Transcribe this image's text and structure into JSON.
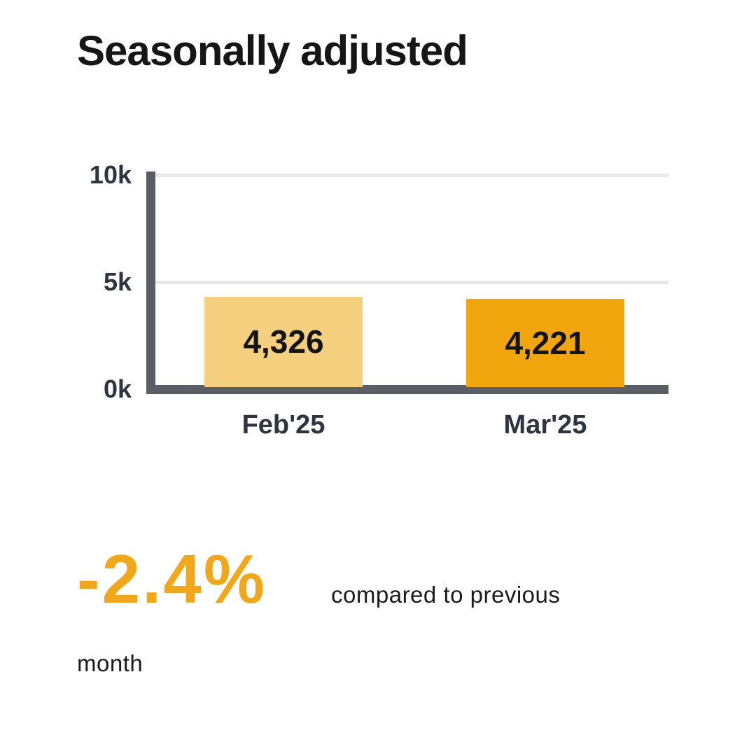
{
  "title": "Seasonally adjusted",
  "colors": {
    "accent_orange": "#F2A60D",
    "bar_previous_month": "#F4CF7D",
    "bar_current_month": "#F2A60D",
    "axis": "#5B5E64",
    "gridline": "#E9E9EB",
    "tick_text": "#2E3440",
    "percent_text": "#F1A71C",
    "body_text": "#1B1B1B"
  },
  "chart_data": {
    "type": "bar",
    "title": "Seasonally adjusted",
    "categories": [
      "Feb'25",
      "Mar'25"
    ],
    "values": [
      4326,
      4221
    ],
    "value_labels": [
      "4,326",
      "4,221"
    ],
    "bar_colors": [
      "#F4CF7D",
      "#F2A60D"
    ],
    "xlabel": "",
    "ylabel": "",
    "ylim": [
      0,
      10000
    ],
    "ytick_values": [
      0,
      5000,
      10000
    ],
    "ytick_labels": [
      "0k",
      "5k",
      "10k"
    ],
    "grid": "horizontal gridlines at 5k and 10k",
    "legend_position": "none"
  },
  "summary": {
    "percent": "-2.4%",
    "line1": "compared to previous",
    "line2": "month"
  }
}
